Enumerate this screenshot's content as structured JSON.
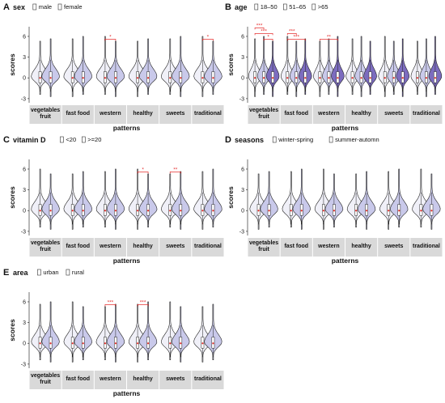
{
  "figure": {
    "y_axis_label": "scores",
    "x_axis_label": "patterns",
    "colors": {
      "v1": "#f0f0f8",
      "v2": "#c9c9ea",
      "v3": "#7c6cbf",
      "outline": "#222222",
      "sig": "#e53030",
      "band": "#d9d9d9",
      "median": "#e53030"
    }
  },
  "chart_data": [
    {
      "id": "A",
      "type": "violin",
      "panel_letter": "A",
      "factor": "sex",
      "legend": [
        "male",
        "female"
      ],
      "categories": [
        "vegetables fruit",
        "fast food",
        "western",
        "healthy",
        "sweets",
        "traditional"
      ],
      "category_lines": [
        [
          "vegetables",
          "fruit"
        ],
        [
          "fast food"
        ],
        [
          "western"
        ],
        [
          "healthy"
        ],
        [
          "sweets"
        ],
        [
          "traditional"
        ]
      ],
      "yticks": [
        -3,
        0,
        3,
        6
      ],
      "ylim": [
        -3.6,
        7.4
      ],
      "series": [
        {
          "name": "male",
          "medians": [
            0,
            0,
            0,
            0,
            0,
            0
          ]
        },
        {
          "name": "female",
          "medians": [
            0,
            0,
            0,
            0,
            0,
            0
          ]
        }
      ],
      "significance": [
        {
          "category": "western",
          "from": 0,
          "to": 1,
          "label": "*"
        },
        {
          "category": "traditional",
          "from": 0,
          "to": 1,
          "label": "*"
        }
      ]
    },
    {
      "id": "B",
      "type": "violin",
      "panel_letter": "B",
      "factor": "age",
      "legend": [
        "18–50",
        "51–65",
        ">65"
      ],
      "categories": [
        "vegetables fruit",
        "fast food",
        "western",
        "healthy",
        "sweets",
        "traditional"
      ],
      "category_lines": [
        [
          "vegetables",
          "fruit"
        ],
        [
          "fast food"
        ],
        [
          "western"
        ],
        [
          "healthy"
        ],
        [
          "sweets"
        ],
        [
          "traditional"
        ]
      ],
      "yticks": [
        -3,
        0,
        3,
        6
      ],
      "ylim": [
        -3.6,
        7.4
      ],
      "series": [
        {
          "name": "18–50",
          "medians": [
            0,
            0,
            0,
            0,
            0,
            0
          ]
        },
        {
          "name": "51–65",
          "medians": [
            0,
            0,
            0,
            0,
            0,
            0
          ]
        },
        {
          "name": ">65",
          "medians": [
            0,
            0,
            0,
            0,
            0,
            0
          ]
        }
      ],
      "significance": [
        {
          "category": "vegetables fruit",
          "from": 1,
          "to": 2,
          "label": "*"
        },
        {
          "category": "vegetables fruit",
          "from": 0,
          "to": 2,
          "label": "***"
        },
        {
          "category": "vegetables fruit",
          "from": 0,
          "to": 1,
          "label": "***"
        },
        {
          "category": "fast food",
          "from": 0,
          "to": 2,
          "label": "***"
        },
        {
          "category": "fast food",
          "from": 0,
          "to": 1,
          "label": "***"
        },
        {
          "category": "western",
          "from": 0,
          "to": 2,
          "label": "**"
        }
      ]
    },
    {
      "id": "C",
      "type": "violin",
      "panel_letter": "C",
      "factor": "vitamin D",
      "legend": [
        "<20",
        ">=20"
      ],
      "categories": [
        "vegetables fruit",
        "fast food",
        "western",
        "healthy",
        "sweets",
        "traditional"
      ],
      "category_lines": [
        [
          "vegetables",
          "fruit"
        ],
        [
          "fast food"
        ],
        [
          "western"
        ],
        [
          "healthy"
        ],
        [
          "sweets"
        ],
        [
          "traditional"
        ]
      ],
      "yticks": [
        -3,
        0,
        3,
        6
      ],
      "ylim": [
        -3.6,
        7.4
      ],
      "series": [
        {
          "name": "<20",
          "medians": [
            0,
            0,
            0,
            0,
            0,
            0
          ]
        },
        {
          "name": ">=20",
          "medians": [
            0,
            0,
            0,
            0,
            0,
            0
          ]
        }
      ],
      "significance": [
        {
          "category": "healthy",
          "from": 0,
          "to": 1,
          "label": "*"
        },
        {
          "category": "sweets",
          "from": 0,
          "to": 1,
          "label": "**"
        }
      ]
    },
    {
      "id": "D",
      "type": "violin",
      "panel_letter": "D",
      "factor": "seasons",
      "legend": [
        "winter-spring",
        "summer-automn"
      ],
      "categories": [
        "vegetables fruit",
        "fast food",
        "western",
        "healthy",
        "sweets",
        "traditional"
      ],
      "category_lines": [
        [
          "vegetables",
          "fruit"
        ],
        [
          "fast food"
        ],
        [
          "western"
        ],
        [
          "healthy"
        ],
        [
          "sweets"
        ],
        [
          "traditional"
        ]
      ],
      "yticks": [
        -3,
        0,
        3,
        6
      ],
      "ylim": [
        -3.6,
        7.4
      ],
      "series": [
        {
          "name": "winter-spring",
          "medians": [
            0,
            0,
            0,
            0,
            0,
            0
          ]
        },
        {
          "name": "summer-automn",
          "medians": [
            0,
            0,
            0,
            0,
            0,
            0
          ]
        }
      ],
      "significance": []
    },
    {
      "id": "E",
      "type": "violin",
      "panel_letter": "E",
      "factor": "area",
      "legend": [
        "urban",
        "rural"
      ],
      "categories": [
        "vegetables fruit",
        "fast food",
        "western",
        "healthy",
        "sweets",
        "traditional"
      ],
      "category_lines": [
        [
          "vegetables",
          "fruit"
        ],
        [
          "fast food"
        ],
        [
          "western"
        ],
        [
          "healthy"
        ],
        [
          "sweets"
        ],
        [
          "traditional"
        ]
      ],
      "yticks": [
        -3,
        0,
        3,
        6
      ],
      "ylim": [
        -3.6,
        7.4
      ],
      "series": [
        {
          "name": "urban",
          "medians": [
            0,
            0,
            0,
            0,
            0,
            0
          ]
        },
        {
          "name": "rural",
          "medians": [
            0,
            0,
            0,
            0,
            0,
            0
          ]
        }
      ],
      "significance": [
        {
          "category": "western",
          "from": 0,
          "to": 1,
          "label": "***"
        },
        {
          "category": "healthy",
          "from": 0,
          "to": 1,
          "label": "***"
        }
      ]
    }
  ]
}
